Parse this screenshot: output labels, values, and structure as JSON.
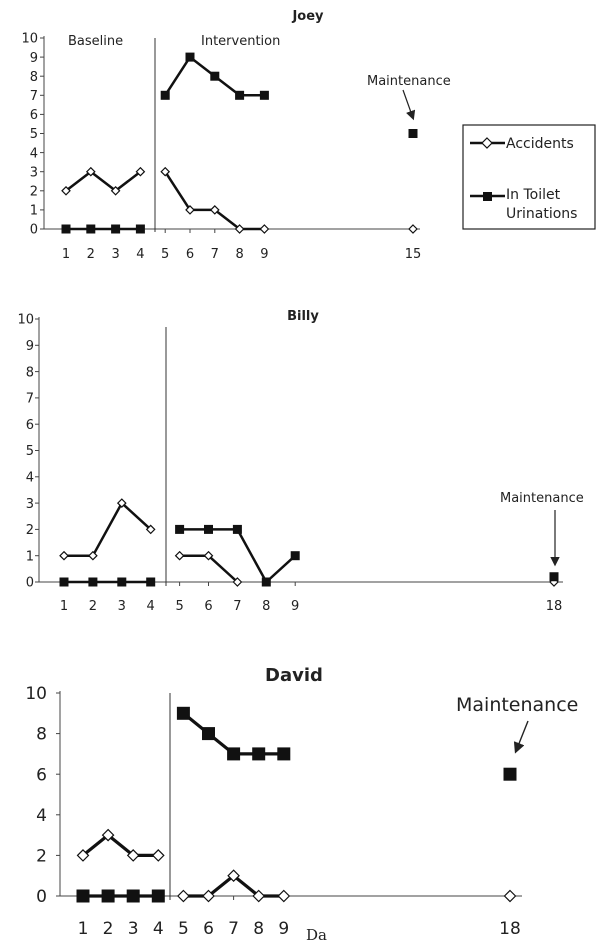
{
  "chart_data": [
    {
      "type": "line",
      "title": "Joey",
      "ylim": [
        0,
        10
      ],
      "yticks": [
        "0",
        "1",
        "2",
        "3",
        "4",
        "5",
        "6",
        "7",
        "8",
        "9",
        "10"
      ],
      "xtick_labels": [
        "1",
        "2",
        "3",
        "4",
        "5",
        "6",
        "7",
        "8",
        "9",
        "15"
      ],
      "phase_labels": {
        "baseline": "Baseline",
        "intervention": "Intervention",
        "maintenance": "Maintenance"
      },
      "legend": {
        "accidents": "Accidents",
        "toilet_line1": "In Toilet",
        "toilet_line2": "Urinations"
      },
      "series": [
        {
          "name": "Accidents",
          "marker": "diamond",
          "segments": [
            [
              [
                1,
                2
              ],
              [
                2,
                3
              ],
              [
                3,
                2
              ],
              [
                4,
                3
              ]
            ],
            [
              [
                5,
                3
              ],
              [
                6,
                1
              ],
              [
                7,
                1
              ],
              [
                8,
                0
              ],
              [
                9,
                0
              ]
            ],
            [
              [
                15,
                0
              ]
            ]
          ]
        },
        {
          "name": "In Toilet Urinations",
          "marker": "square",
          "segments": [
            [
              [
                1,
                0
              ],
              [
                2,
                0
              ],
              [
                3,
                0
              ],
              [
                4,
                0
              ]
            ],
            [
              [
                5,
                7
              ],
              [
                6,
                9
              ],
              [
                7,
                8
              ],
              [
                8,
                7
              ],
              [
                9,
                7
              ]
            ],
            [
              [
                15,
                5
              ]
            ]
          ]
        }
      ]
    },
    {
      "type": "line",
      "title": "Billy",
      "ylim": [
        0,
        10
      ],
      "yticks": [
        "0",
        "1",
        "2",
        "3",
        "4",
        "5",
        "6",
        "7",
        "8",
        "9",
        "10"
      ],
      "xtick_labels": [
        "1",
        "2",
        "3",
        "4",
        "5",
        "6",
        "7",
        "8",
        "9",
        "18"
      ],
      "phase_labels": {
        "maintenance": "Maintenance"
      },
      "series": [
        {
          "name": "Accidents",
          "marker": "diamond",
          "segments": [
            [
              [
                1,
                1
              ],
              [
                2,
                1
              ],
              [
                3,
                3
              ],
              [
                4,
                2
              ]
            ],
            [
              [
                5,
                1
              ],
              [
                6,
                1
              ],
              [
                7,
                0
              ]
            ],
            [
              [
                18,
                0
              ]
            ]
          ]
        },
        {
          "name": "In Toilet Urinations",
          "marker": "square",
          "segments": [
            [
              [
                1,
                0
              ],
              [
                2,
                0
              ],
              [
                3,
                0
              ],
              [
                4,
                0
              ]
            ],
            [
              [
                5,
                2
              ],
              [
                6,
                2
              ],
              [
                7,
                2
              ],
              [
                8,
                0
              ],
              [
                9,
                1
              ]
            ],
            [
              [
                18,
                0.2
              ]
            ]
          ]
        }
      ]
    },
    {
      "type": "line",
      "title": "David",
      "ylim": [
        0,
        10
      ],
      "yticks": [
        "0",
        "2",
        "4",
        "6",
        "8",
        "10"
      ],
      "xtick_labels": [
        "1",
        "2",
        "3",
        "4",
        "5",
        "6",
        "7",
        "8",
        "9",
        "18"
      ],
      "xlabel": "Da",
      "phase_labels": {
        "maintenance": "Maintenance"
      },
      "series": [
        {
          "name": "Accidents",
          "marker": "diamond",
          "segments": [
            [
              [
                1,
                2
              ],
              [
                2,
                3
              ],
              [
                3,
                2
              ],
              [
                4,
                2
              ]
            ],
            [
              [
                5,
                0
              ],
              [
                6,
                0
              ],
              [
                7,
                1
              ],
              [
                8,
                0
              ],
              [
                9,
                0
              ]
            ],
            [
              [
                18,
                0
              ]
            ]
          ]
        },
        {
          "name": "In Toilet Urinations",
          "marker": "square",
          "segments": [
            [
              [
                1,
                0
              ],
              [
                2,
                0
              ],
              [
                3,
                0
              ],
              [
                4,
                0
              ]
            ],
            [
              [
                5,
                9
              ],
              [
                6,
                8
              ],
              [
                7,
                7
              ],
              [
                8,
                7
              ],
              [
                9,
                7
              ]
            ],
            [
              [
                18,
                6
              ]
            ]
          ]
        }
      ]
    }
  ]
}
